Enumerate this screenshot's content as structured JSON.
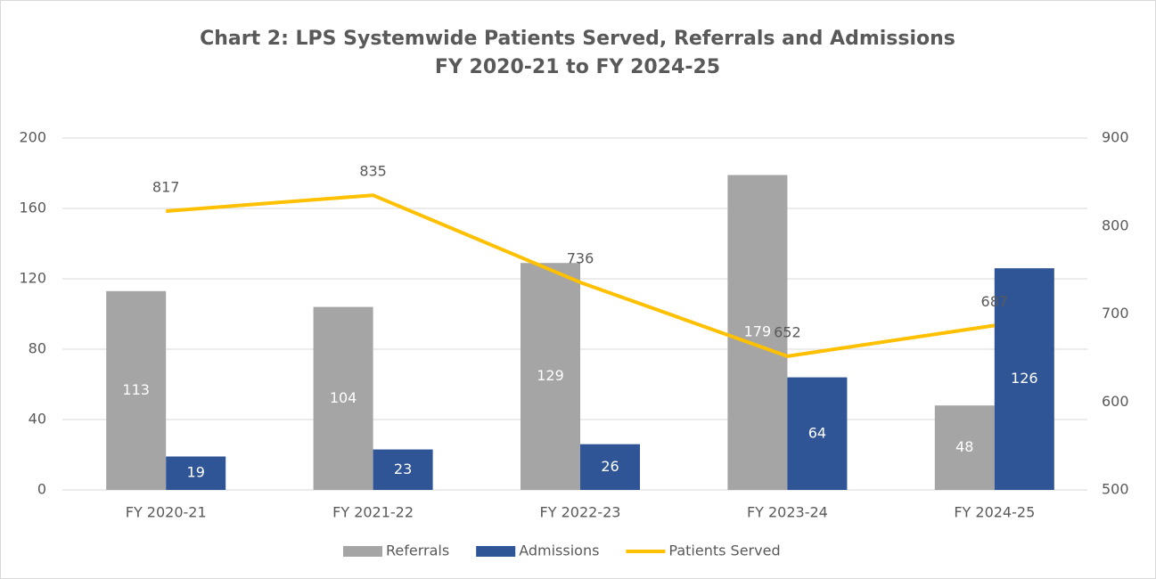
{
  "chart_data": {
    "type": "bar-line",
    "title": "Chart 2: LPS Systemwide Patients Served, Referrals and Admissions",
    "subtitle": "FY 2020-21 to FY 2024-25",
    "categories": [
      "FY 2020-21",
      "FY 2021-22",
      "FY 2022-23",
      "FY 2023-24",
      "FY 2024-25"
    ],
    "series": [
      {
        "name": "Referrals",
        "color": "#a5a5a5",
        "type": "bar",
        "values": [
          113,
          104,
          129,
          179,
          48
        ]
      },
      {
        "name": "Admissions",
        "color": "#2f5597",
        "type": "bar",
        "values": [
          19,
          23,
          26,
          64,
          126
        ]
      },
      {
        "name": "Patients Served",
        "color": "#ffc000",
        "type": "line",
        "axis": "y2",
        "values": [
          817,
          835,
          736,
          652,
          687
        ]
      }
    ],
    "ylim": [
      0,
      200
    ],
    "yticks": [
      0,
      40,
      80,
      120,
      160,
      200
    ],
    "y2lim": [
      500,
      900
    ],
    "y2ticks": [
      500,
      600,
      700,
      800,
      900
    ],
    "grid": true,
    "legend": "bottom"
  }
}
